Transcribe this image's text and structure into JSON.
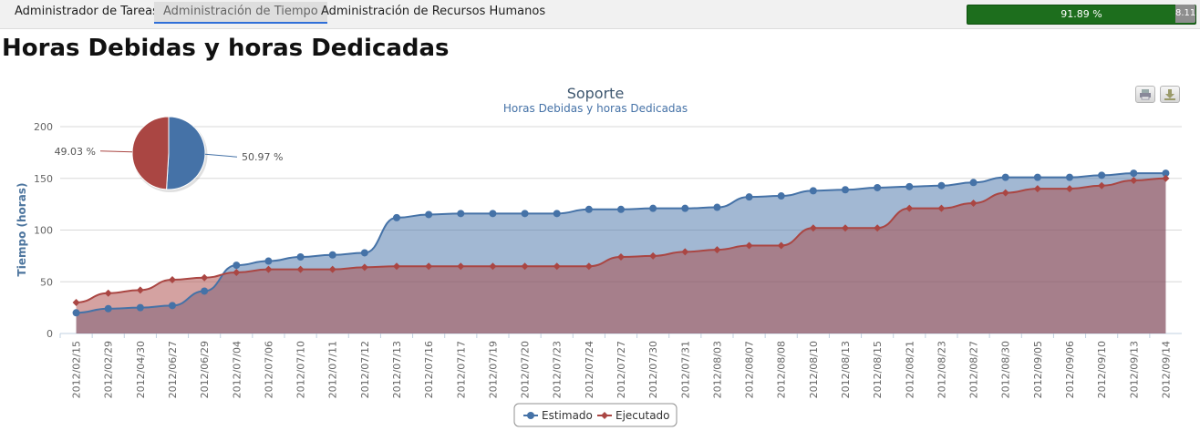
{
  "nav": {
    "tabs": [
      {
        "label": "Administrador de Tareas"
      },
      {
        "label": "Administración de Tiempo"
      },
      {
        "label": "Administración de Recursos Humanos"
      }
    ],
    "progress": {
      "label": "91.89 %",
      "rest_label": "8.11",
      "fraction": 0.9189
    }
  },
  "page": {
    "title": "Horas Debidas y horas Dedicadas"
  },
  "chart_data": {
    "type": "area",
    "title": "Soporte",
    "subtitle": "Horas Debidas y horas Dedicadas",
    "ylabel": "Tiempo (horas)",
    "ylim": [
      0,
      200
    ],
    "yticks": [
      "0",
      "50",
      "100",
      "150",
      "200"
    ],
    "grid": true,
    "legend_position": "bottom-center",
    "categories": [
      "2012/02/15",
      "2012/02/29",
      "2012/04/30",
      "2012/06/27",
      "2012/06/29",
      "2012/07/04",
      "2012/07/06",
      "2012/07/10",
      "2012/07/11",
      "2012/07/12",
      "2012/07/13",
      "2012/07/16",
      "2012/07/17",
      "2012/07/19",
      "2012/07/20",
      "2012/07/23",
      "2012/07/24",
      "2012/07/27",
      "2012/07/30",
      "2012/07/31",
      "2012/08/03",
      "2012/08/07",
      "2012/08/08",
      "2012/08/10",
      "2012/08/13",
      "2012/08/15",
      "2012/08/21",
      "2012/08/23",
      "2012/08/27",
      "2012/08/30",
      "2012/09/05",
      "2012/09/06",
      "2012/09/10",
      "2012/09/13",
      "2012/09/14"
    ],
    "series": [
      {
        "name": "Estimado",
        "color": "#4572a7",
        "values": [
          20,
          24,
          25,
          27,
          41,
          66,
          70,
          74,
          76,
          78,
          112,
          115,
          116,
          116,
          116,
          116,
          120,
          120,
          121,
          121,
          122,
          132,
          133,
          138,
          139,
          141,
          142,
          143,
          146,
          151,
          151,
          151,
          153,
          155,
          155
        ]
      },
      {
        "name": "Ejecutado",
        "color": "#aa4643",
        "values": [
          30,
          39,
          42,
          52,
          54,
          59,
          62,
          62,
          62,
          64,
          65,
          65,
          65,
          65,
          65,
          65,
          65,
          74,
          75,
          79,
          81,
          85,
          85,
          102,
          102,
          102,
          121,
          121,
          126,
          136,
          140,
          140,
          143,
          148,
          150
        ]
      }
    ],
    "pie": {
      "slices": [
        {
          "label": "50.97 %",
          "value": 50.97,
          "color": "#4572a7"
        },
        {
          "label": "49.03 %",
          "value": 49.03,
          "color": "#aa4643"
        }
      ]
    }
  },
  "controls": {
    "print_icon": "printer-icon",
    "download_icon": "download-icon"
  }
}
